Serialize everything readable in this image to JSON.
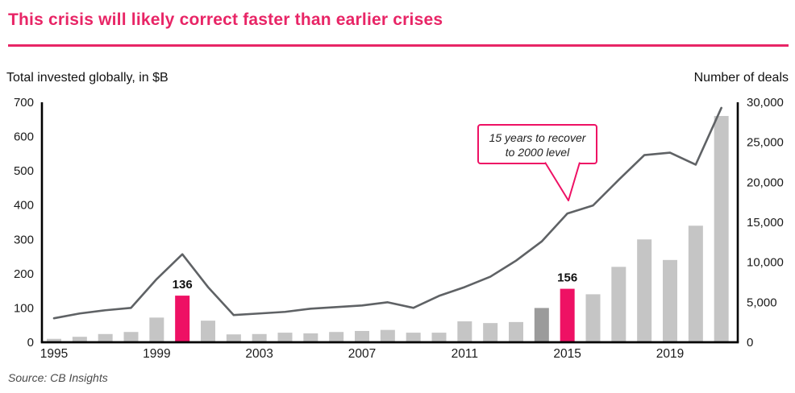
{
  "header": {
    "title": "This crisis will likely correct faster than earlier crises"
  },
  "left_axis_title": "Total invested globally, in $B",
  "right_axis_title": "Number of deals",
  "source": "Source: CB Insights",
  "annotation": {
    "line1": "15 years to recover",
    "line2": "to 2000 level",
    "points_to_year": 2015
  },
  "colors": {
    "accent": "#e82566",
    "bar": "#c5c5c5",
    "bar_dark": "#9b9b9b",
    "bar_highlight": "#ee1164",
    "line": "#5f6265",
    "axis": "#000000",
    "text": "#1a1a1a",
    "source_text": "#4a4a4a"
  },
  "chart_data": {
    "type": "bar+line combo",
    "title": "This crisis will likely correct faster than earlier crises",
    "xlabel": "",
    "ylabel_left": "Total invested globally, in $B",
    "ylabel_right": "Number of deals",
    "grid": false,
    "legend_position": "none",
    "categories": [
      1995,
      1996,
      1997,
      1998,
      1999,
      2000,
      2001,
      2002,
      2003,
      2004,
      2005,
      2006,
      2007,
      2008,
      2009,
      2010,
      2011,
      2012,
      2013,
      2014,
      2015,
      2016,
      2017,
      2018,
      2019,
      2020,
      2021
    ],
    "series": [
      {
        "name": "Total invested globally, in $B",
        "type": "bar",
        "axis": "left",
        "values": [
          10,
          16,
          24,
          30,
          72,
          136,
          63,
          23,
          24,
          28,
          26,
          30,
          33,
          36,
          28,
          28,
          61,
          56,
          59,
          100,
          156,
          140,
          220,
          300,
          240,
          340,
          660
        ]
      },
      {
        "name": "Number of deals",
        "type": "line",
        "axis": "right",
        "values": [
          3000,
          3600,
          4000,
          4300,
          7900,
          11000,
          6900,
          3400,
          3600,
          3800,
          4200,
          4400,
          4600,
          5000,
          4300,
          5800,
          6900,
          8200,
          10200,
          12600,
          16100,
          17100,
          20300,
          23400,
          23700,
          22200,
          29300
        ]
      }
    ],
    "highlighted_bars": [
      {
        "year": 2000,
        "label": "136"
      },
      {
        "year": 2015,
        "label": "156"
      }
    ],
    "dark_bar_year": 2014,
    "left_axis": {
      "min": 0,
      "max": 700,
      "step": 100
    },
    "right_axis": {
      "min": 0,
      "max": 30000,
      "step": 5000
    },
    "x_tick_years": [
      1995,
      1999,
      2003,
      2007,
      2011,
      2015,
      2019
    ]
  }
}
